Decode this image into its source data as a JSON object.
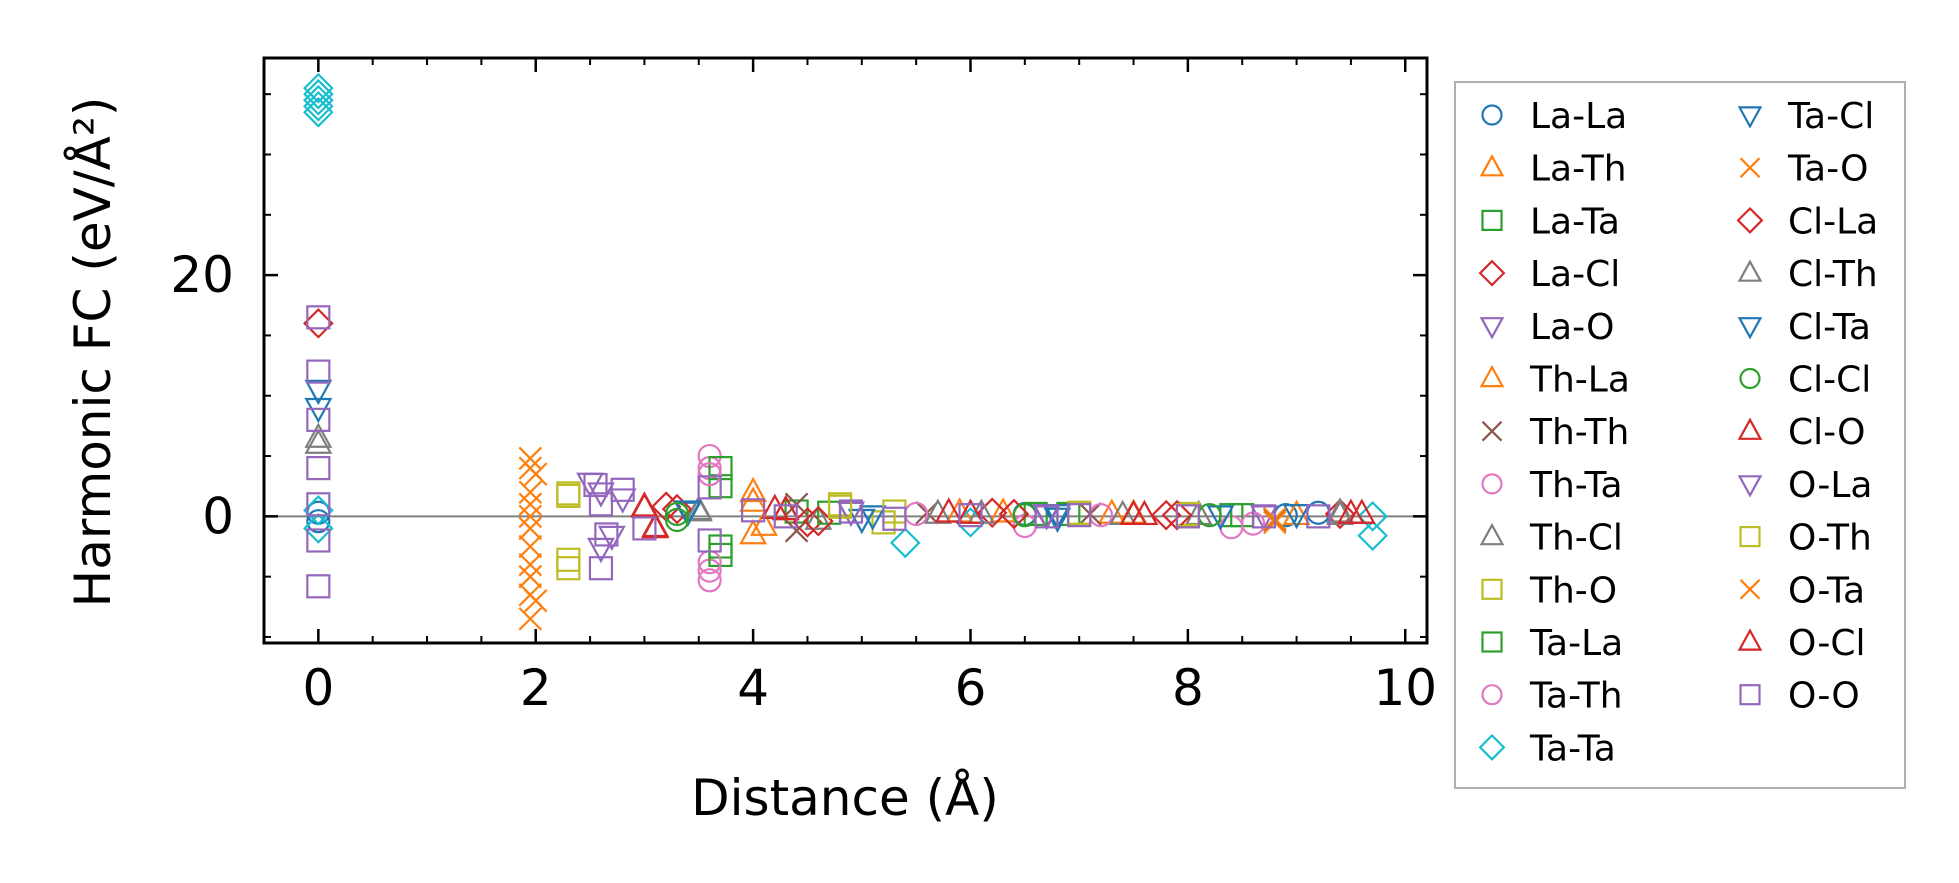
{
  "chart_data": {
    "type": "scatter",
    "xlabel": "Distance (Å)",
    "ylabel": "Harmonic FC (eV/Å²)",
    "xlim": [
      -0.5,
      10.2
    ],
    "ylim": [
      -10.5,
      38
    ],
    "x_ticks": [
      0,
      2,
      4,
      6,
      8,
      10
    ],
    "y_ticks": [
      0,
      20
    ],
    "x_tick_labels": [
      "0",
      "2",
      "4",
      "6",
      "8",
      "10"
    ],
    "y_tick_labels": [
      "0",
      "20"
    ],
    "zero_line": 0,
    "grid": false,
    "legend_position": "outside-right",
    "legend_columns": 2,
    "series": [
      {
        "name": "La-La",
        "marker": "circle",
        "color": "#1f77b4",
        "points": [
          [
            0,
            0.3
          ],
          [
            0,
            -0.4
          ],
          [
            6.5,
            0.2
          ],
          [
            8.9,
            0.1
          ],
          [
            9.2,
            0.3
          ]
        ]
      },
      {
        "name": "La-Th",
        "marker": "triangle-up",
        "color": "#ff7f0e",
        "points": [
          [
            4.0,
            2.0
          ],
          [
            4.0,
            -1.5
          ],
          [
            4.3,
            0.5
          ],
          [
            6.3,
            0.3
          ],
          [
            7.3,
            0.2
          ]
        ]
      },
      {
        "name": "La-Ta",
        "marker": "square",
        "color": "#2ca02c",
        "points": [
          [
            3.7,
            2.5
          ],
          [
            3.7,
            -2.5
          ],
          [
            4.4,
            0.4
          ],
          [
            6.9,
            0.2
          ],
          [
            8.4,
            0.1
          ]
        ]
      },
      {
        "name": "La-Cl",
        "marker": "diamond",
        "color": "#d62728",
        "points": [
          [
            3.2,
            0.8
          ],
          [
            4.5,
            -0.5
          ],
          [
            6.2,
            0.3
          ],
          [
            7.8,
            0.1
          ],
          [
            9.4,
            0.2
          ]
        ]
      },
      {
        "name": "La-O",
        "marker": "triangle-down",
        "color": "#9467bd",
        "points": [
          [
            2.6,
            2.0
          ],
          [
            2.7,
            -1.6
          ],
          [
            4.9,
            0.4
          ],
          [
            6.7,
            0.2
          ],
          [
            8.7,
            0.1
          ]
        ]
      },
      {
        "name": "Th-La",
        "marker": "triangle-up",
        "color": "#ff7f0e",
        "points": [
          [
            4.0,
            1.2
          ],
          [
            4.1,
            -0.8
          ],
          [
            5.9,
            0.3
          ],
          [
            7.5,
            0.2
          ],
          [
            9.0,
            0.1
          ]
        ]
      },
      {
        "name": "Th-Th",
        "marker": "x",
        "color": "#8c564b",
        "points": [
          [
            4.4,
            1.0
          ],
          [
            4.4,
            -1.2
          ],
          [
            5.6,
            0.3
          ],
          [
            7.1,
            0.2
          ],
          [
            8.8,
            -0.3
          ]
        ]
      },
      {
        "name": "Th-Ta",
        "marker": "circle",
        "color": "#e377c2",
        "points": [
          [
            3.6,
            5.0
          ],
          [
            3.6,
            4.0
          ],
          [
            3.6,
            -4.5
          ],
          [
            3.6,
            -5.3
          ],
          [
            6.5,
            -0.8
          ],
          [
            8.4,
            -0.9
          ]
        ]
      },
      {
        "name": "Th-Cl",
        "marker": "triangle-up",
        "color": "#7f7f7f",
        "points": [
          [
            3.5,
            0.5
          ],
          [
            4.6,
            -0.3
          ],
          [
            6.1,
            0.2
          ],
          [
            8.1,
            0.1
          ],
          [
            9.4,
            0.3
          ],
          [
            0,
            6.5
          ]
        ]
      },
      {
        "name": "Th-O",
        "marker": "square",
        "color": "#bcbd22",
        "points": [
          [
            2.3,
            1.9
          ],
          [
            2.3,
            -4.3
          ],
          [
            4.8,
            1.0
          ],
          [
            5.2,
            -0.5
          ],
          [
            7.0,
            0.3
          ],
          [
            8.0,
            0.2
          ]
        ]
      },
      {
        "name": "Ta-La",
        "marker": "square",
        "color": "#2ca02c",
        "points": [
          [
            3.7,
            4.0
          ],
          [
            3.7,
            -3.2
          ],
          [
            4.7,
            0.3
          ],
          [
            6.6,
            0.2
          ],
          [
            8.5,
            0.1
          ]
        ]
      },
      {
        "name": "Ta-Th",
        "marker": "circle",
        "color": "#e377c2",
        "points": [
          [
            3.6,
            3.5
          ],
          [
            3.6,
            -3.8
          ],
          [
            5.5,
            0.2
          ],
          [
            7.2,
            0.1
          ],
          [
            8.6,
            -0.6
          ]
        ]
      },
      {
        "name": "Ta-Ta",
        "marker": "diamond",
        "color": "#17becf",
        "points": [
          [
            0,
            35.5
          ],
          [
            0,
            35.0
          ],
          [
            0,
            34.5
          ],
          [
            0,
            34.0
          ],
          [
            0,
            33.5
          ],
          [
            0,
            0.5
          ],
          [
            0,
            -1.0
          ],
          [
            5.4,
            -2.2
          ],
          [
            6.0,
            -0.5
          ],
          [
            9.7,
            -1.6
          ],
          [
            9.7,
            0.0
          ]
        ]
      },
      {
        "name": "Ta-Cl",
        "marker": "triangle-down",
        "color": "#1f77b4",
        "points": [
          [
            0,
            10.5
          ],
          [
            0,
            9.0
          ],
          [
            3.4,
            0.4
          ],
          [
            5.0,
            -0.2
          ],
          [
            6.8,
            0.2
          ],
          [
            9.0,
            0.2
          ]
        ]
      },
      {
        "name": "Ta-O",
        "marker": "x",
        "color": "#ff7f0e",
        "points": [
          [
            1.95,
            4.8
          ],
          [
            1.95,
            2.0
          ],
          [
            1.95,
            0.0
          ],
          [
            1.95,
            -2.5
          ],
          [
            1.95,
            -5.0
          ],
          [
            1.95,
            -8.5
          ],
          [
            2.0,
            3.5
          ],
          [
            2.0,
            -7.0
          ],
          [
            8.8,
            -0.5
          ]
        ]
      },
      {
        "name": "Cl-La",
        "marker": "diamond",
        "color": "#d62728",
        "points": [
          [
            0,
            16.0
          ],
          [
            3.3,
            0.6
          ],
          [
            4.6,
            -0.4
          ],
          [
            6.4,
            0.2
          ],
          [
            7.9,
            0.1
          ]
        ]
      },
      {
        "name": "Cl-Th",
        "marker": "triangle-up",
        "color": "#7f7f7f",
        "points": [
          [
            0,
            6.0
          ],
          [
            3.5,
            0.4
          ],
          [
            5.7,
            0.2
          ],
          [
            7.4,
            0.1
          ],
          [
            9.4,
            0.1
          ]
        ]
      },
      {
        "name": "Cl-Ta",
        "marker": "triangle-down",
        "color": "#1f77b4",
        "points": [
          [
            3.4,
            0.5
          ],
          [
            5.1,
            0.1
          ],
          [
            6.8,
            -0.1
          ],
          [
            8.3,
            0.1
          ]
        ]
      },
      {
        "name": "Cl-Cl",
        "marker": "circle",
        "color": "#2ca02c",
        "points": [
          [
            3.3,
            0.2
          ],
          [
            3.3,
            -0.3
          ],
          [
            6.5,
            0.1
          ],
          [
            8.2,
            0.1
          ]
        ]
      },
      {
        "name": "Cl-O",
        "marker": "triangle-up",
        "color": "#d62728",
        "points": [
          [
            3.0,
            0.8
          ],
          [
            3.1,
            -1.0
          ],
          [
            4.2,
            0.6
          ],
          [
            5.8,
            0.3
          ],
          [
            7.6,
            0.1
          ],
          [
            9.5,
            0.2
          ]
        ]
      },
      {
        "name": "O-La",
        "marker": "triangle-down",
        "color": "#9467bd",
        "points": [
          [
            2.5,
            2.8
          ],
          [
            2.6,
            -2.6
          ],
          [
            2.8,
            1.5
          ],
          [
            4.9,
            0.4
          ],
          [
            6.7,
            0.1
          ]
        ]
      },
      {
        "name": "O-Th",
        "marker": "square",
        "color": "#bcbd22",
        "points": [
          [
            2.3,
            1.7
          ],
          [
            2.3,
            -3.6
          ],
          [
            4.8,
            0.8
          ],
          [
            5.3,
            0.4
          ],
          [
            7.0,
            0.2
          ],
          [
            8.0,
            0.1
          ]
        ]
      },
      {
        "name": "O-Ta",
        "marker": "x",
        "color": "#ff7f0e",
        "points": [
          [
            1.95,
            4.0
          ],
          [
            1.95,
            1.0
          ],
          [
            1.95,
            -1.0
          ],
          [
            1.95,
            -4.0
          ],
          [
            1.95,
            -6.5
          ],
          [
            8.8,
            -0.2
          ]
        ]
      },
      {
        "name": "O-Cl",
        "marker": "triangle-up",
        "color": "#d62728",
        "points": [
          [
            3.0,
            0.7
          ],
          [
            3.1,
            -0.9
          ],
          [
            4.3,
            0.5
          ],
          [
            6.0,
            0.2
          ],
          [
            7.5,
            0.1
          ],
          [
            9.6,
            0.2
          ]
        ]
      },
      {
        "name": "O-O",
        "marker": "square",
        "color": "#9467bd",
        "points": [
          [
            0,
            16.5
          ],
          [
            0,
            12.0
          ],
          [
            0,
            8.0
          ],
          [
            0,
            4.0
          ],
          [
            0,
            1.0
          ],
          [
            0,
            -2.0
          ],
          [
            0,
            -5.8
          ],
          [
            2.55,
            2.6
          ],
          [
            2.6,
            1.0
          ],
          [
            2.65,
            -1.5
          ],
          [
            2.6,
            -4.3
          ],
          [
            2.8,
            2.2
          ],
          [
            3.0,
            -1.0
          ],
          [
            3.6,
            2.4
          ],
          [
            3.6,
            -2.0
          ],
          [
            4.0,
            0.5
          ],
          [
            4.3,
            0.0
          ],
          [
            4.9,
            0.4
          ],
          [
            5.3,
            -0.2
          ],
          [
            6.0,
            0.1
          ],
          [
            6.7,
            0.0
          ],
          [
            7.0,
            0.1
          ],
          [
            8.0,
            0.0
          ],
          [
            8.7,
            0.0
          ],
          [
            9.2,
            0.0
          ]
        ]
      }
    ]
  }
}
